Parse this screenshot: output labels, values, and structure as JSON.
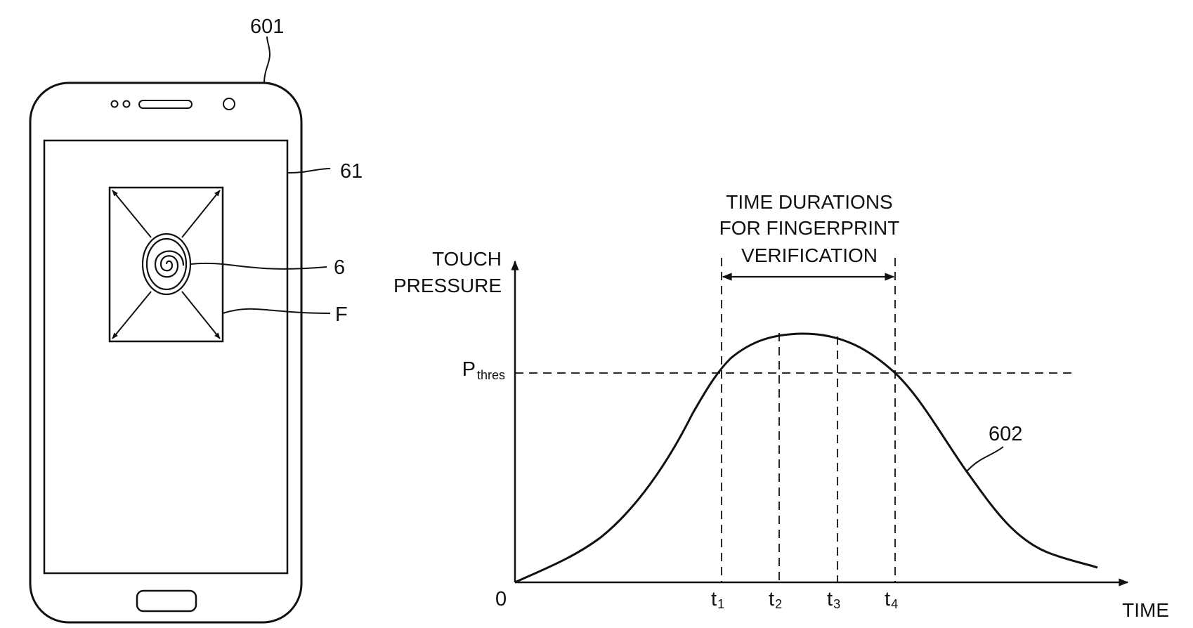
{
  "figure": {
    "colors": {
      "ink": "#111111",
      "background": "#ffffff"
    },
    "device": {
      "ref_device": "601",
      "ref_display": "61",
      "ref_fingerprint": "6",
      "ref_region": "F",
      "icons": [
        "earpiece-dots-icon",
        "speaker-slot-icon",
        "front-camera-icon",
        "home-button-icon",
        "fingerprint-icon",
        "expand-arrows-icon"
      ]
    },
    "graph": {
      "ylabel_line1": "TOUCH",
      "ylabel_line2": "PRESSURE",
      "xlabel": "TIME",
      "origin": "0",
      "threshold_main": "P",
      "threshold_sub": "thres",
      "duration_line1": "TIME DURATIONS",
      "duration_line2": "FOR FINGERPRINT",
      "duration_line3": "VERIFICATION",
      "curve_ref": "602",
      "ticks": [
        {
          "main": "t",
          "sub": "1"
        },
        {
          "main": "t",
          "sub": "2"
        },
        {
          "main": "t",
          "sub": "3"
        },
        {
          "main": "t",
          "sub": "4"
        }
      ]
    }
  }
}
